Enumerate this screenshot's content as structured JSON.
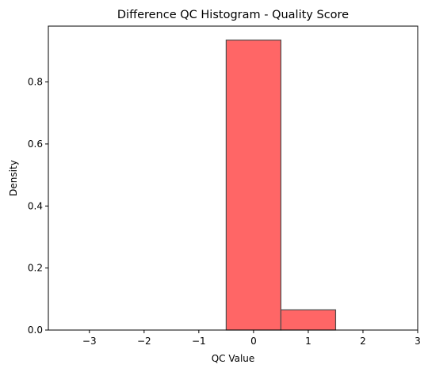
{
  "chart_data": {
    "type": "bar",
    "title": "Difference QC Histogram - Quality Score",
    "xlabel": "QC Value",
    "ylabel": "Density",
    "xlim": [
      -3.75,
      3.0
    ],
    "ylim": [
      0,
      0.98
    ],
    "xticks": [
      -3,
      -2,
      -1,
      0,
      1,
      2,
      3
    ],
    "xtick_labels": [
      "−3",
      "−2",
      "−1",
      "0",
      "1",
      "2",
      "3"
    ],
    "yticks": [
      0.0,
      0.2,
      0.4,
      0.6,
      0.8
    ],
    "ytick_labels": [
      "0.0",
      "0.2",
      "0.4",
      "0.6",
      "0.8"
    ],
    "bins": [
      {
        "x0": -0.5,
        "x1": 0.5,
        "value": 0.935
      },
      {
        "x0": 0.5,
        "x1": 1.5,
        "value": 0.065
      }
    ],
    "grid": false,
    "colors": {
      "bar_fill": "#ff6666",
      "bar_edge": "#4d4d4d"
    }
  }
}
